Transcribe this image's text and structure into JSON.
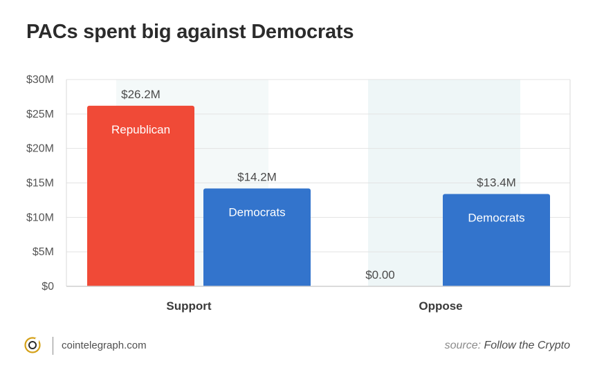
{
  "chart_data": {
    "type": "bar",
    "title": "PACs spent big against Democrats",
    "categories": [
      "Support",
      "Oppose"
    ],
    "bars": [
      {
        "category": "Support",
        "series": "Republican",
        "value": 26.2,
        "value_label": "$26.2M",
        "inner_label": "Republican",
        "color": "#f04a37"
      },
      {
        "category": "Support",
        "series": "Democrats",
        "value": 14.2,
        "value_label": "$14.2M",
        "inner_label": "Democrats",
        "color": "#3374cc"
      },
      {
        "category": "Oppose",
        "series": "Republican",
        "value": 0,
        "value_label": "$0.00",
        "inner_label": "",
        "color": "#f04a37"
      },
      {
        "category": "Oppose",
        "series": "Democrats",
        "value": 13.4,
        "value_label": "$13.4M",
        "inner_label": "Democrats",
        "color": "#3374cc"
      }
    ],
    "y_ticks": [
      {
        "value": 0,
        "label": "$0"
      },
      {
        "value": 5,
        "label": "$5M"
      },
      {
        "value": 10,
        "label": "$10M"
      },
      {
        "value": 15,
        "label": "$15M"
      },
      {
        "value": 20,
        "label": "$20M"
      },
      {
        "value": 25,
        "label": "$25M"
      },
      {
        "value": 30,
        "label": "$30M"
      }
    ],
    "ylim": [
      0,
      30
    ],
    "grid": true,
    "xlabel": "",
    "ylabel": ""
  },
  "footer": {
    "logo_icon": "cointelegraph-logo-icon",
    "domain": "cointelegraph.com",
    "source_label": "source:",
    "source_name": "Follow the Crypto"
  }
}
